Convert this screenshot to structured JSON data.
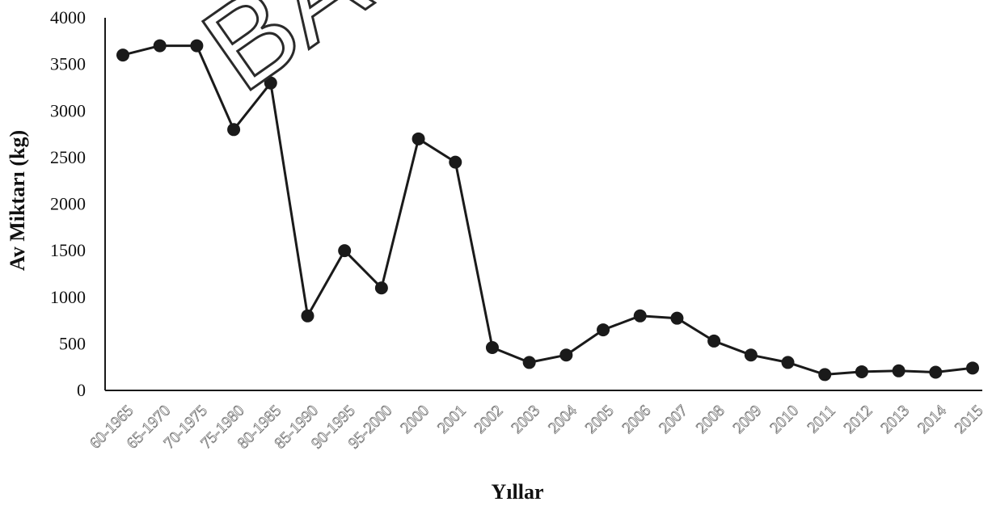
{
  "chart_data": {
    "type": "line",
    "title": "",
    "xlabel": "Yıllar",
    "ylabel": "Av Miktarı (kg)",
    "ylim": [
      0,
      4000
    ],
    "yticks": [
      "0",
      "500",
      "1000",
      "1500",
      "2000",
      "2500",
      "3000",
      "3500",
      "4000"
    ],
    "categories": [
      "60-1965",
      "65-1970",
      "70-1975",
      "75-1980",
      "80-1985",
      "85-1990",
      "90-1995",
      "95-2000",
      "2000",
      "2001",
      "2002",
      "2003",
      "2004",
      "2005",
      "2006",
      "2007",
      "2008",
      "2009",
      "2010",
      "2011",
      "2012",
      "2013",
      "2014",
      "2015"
    ],
    "series": [
      {
        "values": [
          3600,
          3700,
          3700,
          2800,
          3300,
          800,
          1500,
          1100,
          2700,
          2450,
          460,
          300,
          380,
          650,
          800,
          775,
          530,
          380,
          300,
          170,
          200,
          210,
          195,
          240
        ]
      }
    ],
    "grid": false,
    "legend": "none",
    "line_color": "#1a1a1a",
    "marker_color": "#1a1a1a"
  },
  "watermark": {
    "text": "BAS"
  }
}
